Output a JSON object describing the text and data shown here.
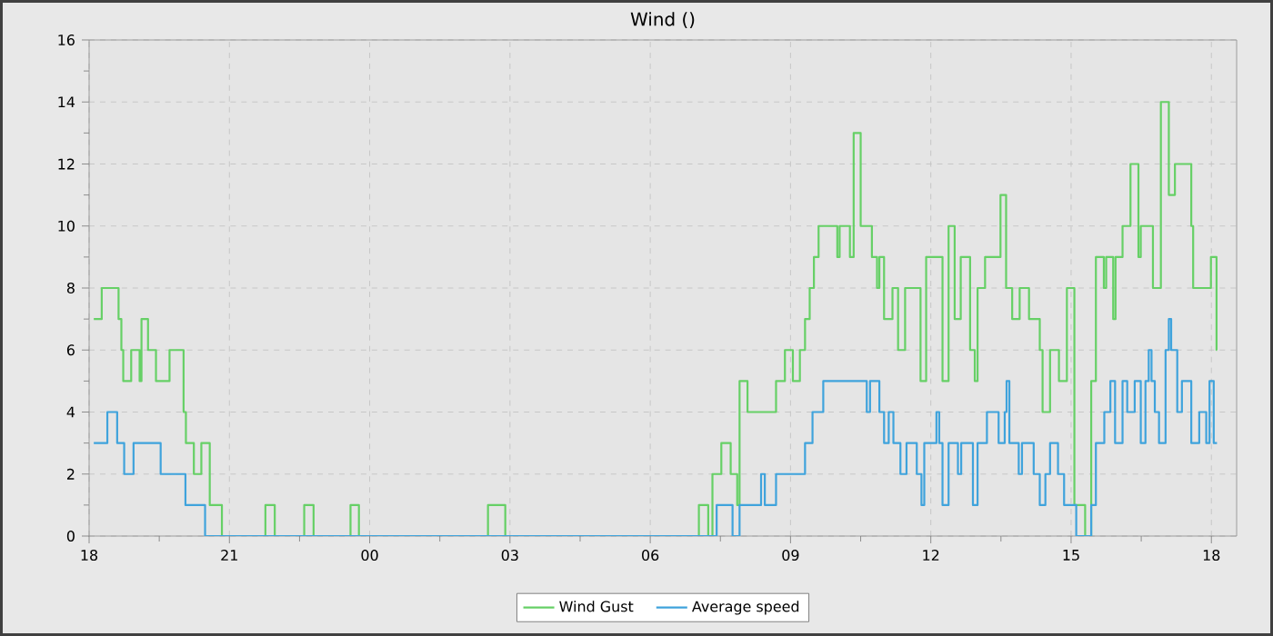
{
  "chart_data": {
    "type": "step",
    "title": "Wind ()",
    "xlim": [
      18,
      42.54
    ],
    "ylim": [
      0,
      16
    ],
    "xticks": [
      {
        "value": 18,
        "label": "18"
      },
      {
        "value": 19.5,
        "label": null
      },
      {
        "value": 21,
        "label": "21"
      },
      {
        "value": 22.5,
        "label": null
      },
      {
        "value": 24,
        "label": "00"
      },
      {
        "value": 25.5,
        "label": null
      },
      {
        "value": 27,
        "label": "03"
      },
      {
        "value": 28.5,
        "label": null
      },
      {
        "value": 30,
        "label": "06"
      },
      {
        "value": 31.5,
        "label": null
      },
      {
        "value": 33,
        "label": "09"
      },
      {
        "value": 34.5,
        "label": null
      },
      {
        "value": 36,
        "label": "12"
      },
      {
        "value": 37.5,
        "label": null
      },
      {
        "value": 39,
        "label": "15"
      },
      {
        "value": 40.5,
        "label": null
      },
      {
        "value": 42,
        "label": "18"
      }
    ],
    "yticks": [
      0,
      {
        "value": 1,
        "label": null
      },
      2,
      {
        "value": 3,
        "label": null
      },
      4,
      {
        "value": 5,
        "label": null
      },
      6,
      {
        "value": 7,
        "label": null
      },
      8,
      {
        "value": 9,
        "label": null
      },
      10,
      {
        "value": 11,
        "label": null
      },
      12,
      {
        "value": 13,
        "label": null
      },
      14,
      {
        "value": 15,
        "label": null
      },
      16
    ],
    "grid": true,
    "legend": "bottom",
    "series": [
      {
        "name": "Wind Gust",
        "color": "#66d066",
        "x": [
          18.1,
          18.27,
          18.63,
          18.69,
          18.73,
          18.9,
          19.08,
          19.12,
          19.26,
          19.43,
          19.72,
          20.02,
          20.07,
          20.24,
          20.4,
          20.58,
          20.84,
          21.77,
          21.97,
          22.6,
          22.8,
          23.59,
          23.77,
          26.53,
          26.9,
          31.04,
          31.24,
          31.33,
          31.52,
          31.72,
          31.86,
          31.91,
          32.08,
          32.69,
          32.88,
          33.05,
          33.2,
          33.31,
          33.41,
          33.5,
          33.6,
          34.0,
          34.05,
          34.27,
          34.35,
          34.5,
          34.74,
          34.85,
          34.9,
          35.0,
          35.18,
          35.3,
          35.45,
          35.78,
          35.9,
          36.25,
          36.38,
          36.51,
          36.64,
          36.84,
          36.94,
          37.0,
          37.16,
          37.49,
          37.61,
          37.74,
          37.9,
          38.1,
          38.33,
          38.39,
          38.55,
          38.74,
          38.91,
          39.07,
          39.3,
          39.43,
          39.53,
          39.7,
          39.75,
          39.9,
          39.95,
          40.1,
          40.27,
          40.44,
          40.49,
          40.75,
          40.92,
          41.09,
          41.22,
          41.57,
          41.61,
          41.99,
          42.11,
          42.12
        ],
        "values": [
          7,
          8,
          7,
          6,
          5,
          6,
          5,
          7,
          6,
          5,
          6,
          4,
          3,
          2,
          3,
          1,
          0,
          1,
          0,
          1,
          0,
          1,
          0,
          1,
          0,
          1,
          0,
          2,
          3,
          2,
          1,
          5,
          4,
          5,
          6,
          5,
          6,
          7,
          8,
          9,
          10,
          9,
          10,
          9,
          13,
          10,
          9,
          8,
          9,
          7,
          8,
          6,
          8,
          5,
          9,
          5,
          10,
          7,
          9,
          6,
          5,
          8,
          9,
          11,
          8,
          7,
          8,
          7,
          6,
          4,
          6,
          5,
          8,
          1,
          0,
          5,
          9,
          8,
          9,
          7,
          9,
          10,
          12,
          9,
          10,
          8,
          14,
          11,
          12,
          10,
          8,
          9,
          6,
          6
        ]
      },
      {
        "name": "Average speed",
        "color": "#3fa3dc",
        "x": [
          18.1,
          18.39,
          18.6,
          18.75,
          18.95,
          19.53,
          20.06,
          20.48,
          31.42,
          31.76,
          31.91,
          32.37,
          32.45,
          32.69,
          33.31,
          33.47,
          33.7,
          34.63,
          34.7,
          34.9,
          35.0,
          35.1,
          35.2,
          35.35,
          35.48,
          35.7,
          35.8,
          35.86,
          36.12,
          36.18,
          36.25,
          36.38,
          36.58,
          36.65,
          36.9,
          37.0,
          37.2,
          37.45,
          37.58,
          37.62,
          37.68,
          37.88,
          37.95,
          38.2,
          38.33,
          38.45,
          38.55,
          38.72,
          38.85,
          39.11,
          39.43,
          39.53,
          39.71,
          39.84,
          39.94,
          40.1,
          40.2,
          40.36,
          40.49,
          40.59,
          40.66,
          40.72,
          40.79,
          40.88,
          41.02,
          41.09,
          41.14,
          41.27,
          41.37,
          41.57,
          41.74,
          41.89,
          41.96,
          42.05,
          42.12
        ],
        "values": [
          3,
          4,
          3,
          2,
          3,
          2,
          1,
          0,
          1,
          0,
          1,
          2,
          1,
          2,
          3,
          4,
          5,
          4,
          5,
          4,
          3,
          4,
          3,
          2,
          3,
          2,
          1,
          3,
          4,
          3,
          1,
          3,
          2,
          3,
          1,
          3,
          4,
          3,
          4,
          5,
          3,
          2,
          3,
          2,
          1,
          2,
          3,
          2,
          1,
          0,
          1,
          3,
          4,
          5,
          3,
          5,
          4,
          5,
          3,
          5,
          6,
          5,
          4,
          3,
          6,
          7,
          6,
          4,
          5,
          3,
          4,
          3,
          5,
          3,
          3
        ]
      }
    ]
  }
}
